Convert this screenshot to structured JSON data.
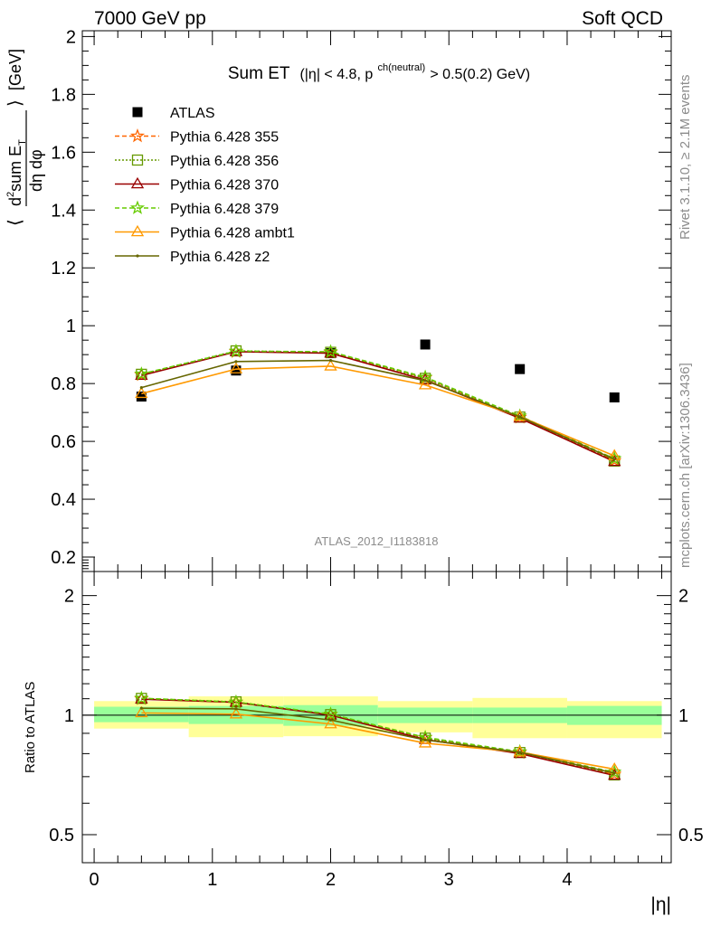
{
  "header": {
    "left": "7000 GeV pp",
    "right": "Soft QCD"
  },
  "side_labels": {
    "rivet": "Rivet 3.1.10, ≥ 2.1M events",
    "mcplots": "mcplots.cern.ch [arXiv:1306.3436]"
  },
  "chart_data": [
    {
      "type": "line",
      "title_main": "Sum ET",
      "title_cut_pre": "(|η| < 4.8, p",
      "title_cut_sup": "ch(neutral)",
      "title_cut_post": " > 0.5(0.2) GeV)",
      "watermark": "ATLAS_2012_I1183818",
      "ylabel": "⟨ d²sum E_T / dη dφ ⟩ [GeV]",
      "ylabel_parts": {
        "open": "⟨",
        "num_pre": "d",
        "num_sup": "2",
        "num_main": "sum E",
        "num_sub": "T",
        "den": "dη dφ",
        "close": "⟩",
        "unit": "[GeV]"
      },
      "ylim": [
        0.15,
        2.02
      ],
      "xlim": [
        -0.1,
        4.88
      ],
      "y_ticks": [
        "0.2",
        "0.4",
        "0.6",
        "0.8",
        "1",
        "1.2",
        "1.4",
        "1.6",
        "1.8",
        "2"
      ],
      "x": [
        0.4,
        1.2,
        2.0,
        2.8,
        3.6,
        4.4
      ],
      "legend": "top-left",
      "series": [
        {
          "name": "ATLAS",
          "values": [
            0.755,
            0.845,
            0.905,
            0.935,
            0.85,
            0.752
          ],
          "color": "#000000",
          "marker": "square",
          "dash": "none"
        },
        {
          "name": "Pythia 6.428 355",
          "values": [
            0.83,
            0.91,
            0.908,
            0.82,
            0.683,
            0.534
          ],
          "color": "#ff6600",
          "marker": "star",
          "dash": "5,3"
        },
        {
          "name": "Pythia 6.428 356",
          "values": [
            0.832,
            0.913,
            0.908,
            0.818,
            0.684,
            0.532
          ],
          "color": "#669900",
          "marker": "opensquare",
          "dash": "2,2"
        },
        {
          "name": "Pythia 6.428 370",
          "values": [
            0.828,
            0.91,
            0.905,
            0.812,
            0.68,
            0.53
          ],
          "color": "#990000",
          "marker": "triangle",
          "dash": "none"
        },
        {
          "name": "Pythia 6.428 379",
          "values": [
            0.833,
            0.912,
            0.91,
            0.822,
            0.688,
            0.54
          ],
          "color": "#66cc00",
          "marker": "star",
          "dash": "5,3"
        },
        {
          "name": "Pythia 6.428 ambt1",
          "values": [
            0.765,
            0.85,
            0.86,
            0.795,
            0.686,
            0.55
          ],
          "color": "#ff9900",
          "marker": "triangle",
          "dash": "none"
        },
        {
          "name": "Pythia 6.428 z2",
          "values": [
            0.786,
            0.876,
            0.88,
            0.81,
            0.685,
            0.538
          ],
          "color": "#666600",
          "marker": "dot",
          "dash": "none"
        }
      ]
    },
    {
      "type": "line",
      "ylabel": "Ratio to ATLAS",
      "xlabel": "|η|",
      "y_scale": "log",
      "ylim": [
        0.425,
        2.3
      ],
      "y_ticks": [
        "0.5",
        "1",
        "2"
      ],
      "x_ticks": [
        "0",
        "1",
        "2",
        "3",
        "4"
      ],
      "x": [
        0.4,
        1.2,
        2.0,
        2.8,
        3.6,
        4.4
      ],
      "bands": [
        {
          "x_low": 0.0,
          "x_high": 0.8,
          "stat": [
            0.96,
            1.05
          ],
          "total": [
            0.925,
            1.085
          ]
        },
        {
          "x_low": 0.8,
          "x_high": 1.6,
          "stat": [
            0.95,
            1.055
          ],
          "total": [
            0.88,
            1.115
          ]
        },
        {
          "x_low": 1.6,
          "x_high": 2.4,
          "stat": [
            0.94,
            1.06
          ],
          "total": [
            0.885,
            1.115
          ]
        },
        {
          "x_low": 2.4,
          "x_high": 3.2,
          "stat": [
            0.955,
            1.045
          ],
          "total": [
            0.905,
            1.085
          ]
        },
        {
          "x_low": 3.2,
          "x_high": 4.0,
          "stat": [
            0.955,
            1.045
          ],
          "total": [
            0.875,
            1.105
          ]
        },
        {
          "x_low": 4.0,
          "x_high": 4.8,
          "stat": [
            0.945,
            1.055
          ],
          "total": [
            0.875,
            1.085
          ]
        }
      ],
      "series": [
        {
          "name": "Pythia 6.428 355",
          "values": [
            1.099,
            1.077,
            1.003,
            0.877,
            0.804,
            0.71
          ],
          "color": "#ff6600",
          "marker": "star",
          "dash": "5,3"
        },
        {
          "name": "Pythia 6.428 356",
          "values": [
            1.102,
            1.08,
            1.003,
            0.875,
            0.805,
            0.707
          ],
          "color": "#669900",
          "marker": "opensquare",
          "dash": "2,2"
        },
        {
          "name": "Pythia 6.428 370",
          "values": [
            1.097,
            1.077,
            1.0,
            0.868,
            0.8,
            0.705
          ],
          "color": "#990000",
          "marker": "triangle",
          "dash": "none"
        },
        {
          "name": "Pythia 6.428 379",
          "values": [
            1.103,
            1.079,
            1.006,
            0.879,
            0.809,
            0.718
          ],
          "color": "#66cc00",
          "marker": "star",
          "dash": "5,3"
        },
        {
          "name": "Pythia 6.428 ambt1",
          "values": [
            1.013,
            1.006,
            0.95,
            0.85,
            0.807,
            0.731
          ],
          "color": "#ff9900",
          "marker": "triangle",
          "dash": "none"
        },
        {
          "name": "Pythia 6.428 z2",
          "values": [
            1.041,
            1.037,
            0.972,
            0.866,
            0.806,
            0.715
          ],
          "color": "#666600",
          "marker": "dot",
          "dash": "none"
        }
      ]
    }
  ]
}
